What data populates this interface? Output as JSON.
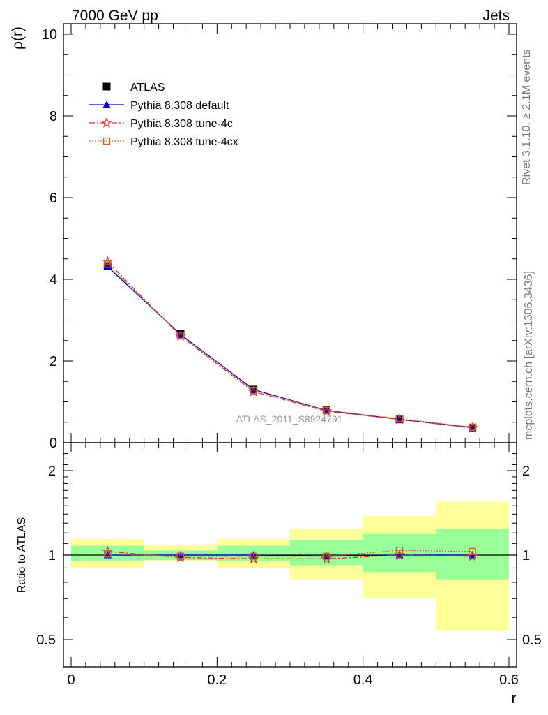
{
  "header": {
    "left_label": "7000 GeV pp",
    "right_label": "Jets"
  },
  "side_labels": {
    "rivet": "Rivet 3.1.10, ≥ 2.1M events",
    "mcplots": "mcplots.cern.ch [arXiv:1306.3436]"
  },
  "watermark": "ATLAS_2011_S8924791",
  "chart_data": [
    {
      "type": "line",
      "ylabel": "ρ(r)",
      "xlabel": "r",
      "xlim": [
        0,
        0.6
      ],
      "ylim": [
        0,
        10.3
      ],
      "x_ticks": [
        "0",
        "0.2",
        "0.4",
        "0.6"
      ],
      "y_ticks": [
        "0",
        "2",
        "4",
        "6",
        "8",
        "10"
      ],
      "x": [
        0.05,
        0.15,
        0.25,
        0.35,
        0.45,
        0.55
      ],
      "legend_position": "top-left",
      "series": [
        {
          "name": "ATLAS",
          "values": [
            4.32,
            2.66,
            1.3,
            0.8,
            0.57,
            0.37
          ],
          "color": "#000000",
          "marker": "square"
        },
        {
          "name": "Pythia 8.308 default",
          "values": [
            4.31,
            2.65,
            1.3,
            0.79,
            0.57,
            0.37
          ],
          "color": "#0000cc",
          "marker": "triangle",
          "line": "solid"
        },
        {
          "name": "Pythia 8.308 tune-4c",
          "values": [
            4.43,
            2.61,
            1.25,
            0.77,
            0.57,
            0.36
          ],
          "color": "#dd3333",
          "marker": "star",
          "line": "dashdot"
        },
        {
          "name": "Pythia 8.308 tune-4cx",
          "values": [
            4.37,
            2.63,
            1.28,
            0.79,
            0.59,
            0.38
          ],
          "color": "#cc6622",
          "marker": "open-square",
          "line": "dotted"
        }
      ]
    },
    {
      "type": "line",
      "ylabel": "Ratio to ATLAS",
      "xlabel": "r",
      "xlim": [
        0,
        0.6
      ],
      "ylim": [
        0.42,
        2.35
      ],
      "y_ticks": [
        "0.5",
        "1",
        "2"
      ],
      "y_tick_values": [
        0.5,
        1,
        2
      ],
      "bins": [
        [
          0,
          0.1
        ],
        [
          0.1,
          0.2
        ],
        [
          0.2,
          0.3
        ],
        [
          0.3,
          0.4
        ],
        [
          0.4,
          0.5
        ],
        [
          0.5,
          0.6
        ]
      ],
      "band_inner": [
        [
          0.95,
          1.08
        ],
        [
          0.96,
          1.04
        ],
        [
          0.95,
          1.08
        ],
        [
          0.92,
          1.13
        ],
        [
          0.87,
          1.19
        ],
        [
          0.82,
          1.24
        ]
      ],
      "band_outer": [
        [
          0.9,
          1.14
        ],
        [
          0.95,
          1.09
        ],
        [
          0.9,
          1.14
        ],
        [
          0.82,
          1.24
        ],
        [
          0.7,
          1.38
        ],
        [
          0.54,
          1.55
        ]
      ],
      "x": [
        0.05,
        0.15,
        0.25,
        0.35,
        0.45,
        0.55
      ],
      "series": [
        {
          "name": "Pythia 8.308 default",
          "values": [
            1.0,
            1.0,
            1.0,
            0.99,
            1.0,
            1.0
          ],
          "color": "#0000cc",
          "marker": "triangle"
        },
        {
          "name": "Pythia 8.308 tune-4c",
          "values": [
            1.03,
            0.98,
            0.97,
            0.97,
            1.0,
            0.99
          ],
          "color": "#dd3333",
          "marker": "star"
        },
        {
          "name": "Pythia 8.308 tune-4cx",
          "values": [
            1.01,
            0.99,
            0.99,
            0.99,
            1.04,
            1.03
          ],
          "color": "#cc6622",
          "marker": "open-square"
        }
      ],
      "colors": {
        "inner_band": "#99ff99",
        "outer_band": "#ffff99"
      }
    }
  ]
}
